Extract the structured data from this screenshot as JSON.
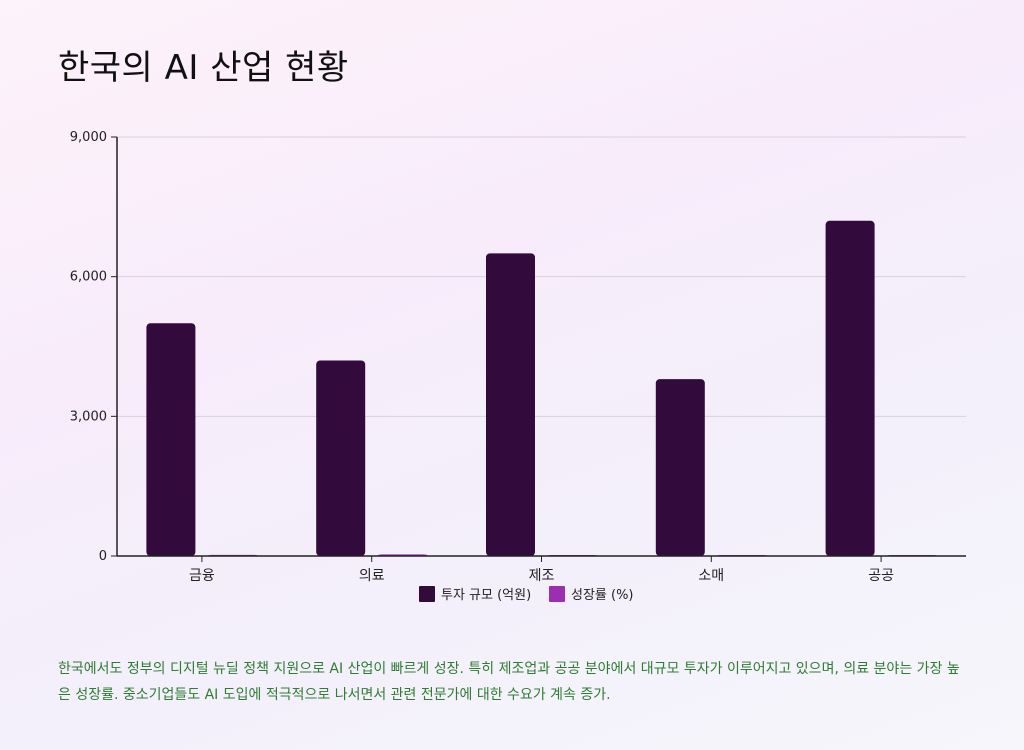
{
  "title": "한국의 AI 산업 현황",
  "caption": "한국에서도 정부의 디지털 뉴딜 정책 지원으로 AI 산업이 빠르게 성장. 특히 제조업과 공공 분야에서 대규모 투자가 이루어지고 있으며, 의료 분야는 가장 높은 성장률. 중소기업들도 AI 도입에 적극적으로 나서면서 관련 전문가에 대한 수요가 계속 증가.",
  "colors": {
    "investment": "#330a3c",
    "growth": "#9b2fb0",
    "caption": "#2e7d32",
    "grid": "#d8d0dc"
  },
  "chart_data": {
    "type": "bar",
    "title": "한국의 AI 산업 현황",
    "categories": [
      "금융",
      "의료",
      "제조",
      "소매",
      "공공"
    ],
    "series": [
      {
        "name": "투자 규모 (억원)",
        "values": [
          5000,
          4200,
          6500,
          3800,
          7200
        ]
      },
      {
        "name": "성장률 (%)",
        "values": [
          25,
          35,
          15,
          20,
          10
        ]
      }
    ],
    "yticks": [
      0,
      3000,
      6000,
      9000
    ],
    "ytick_labels": [
      "0",
      "3,000",
      "6,000",
      "9,000"
    ],
    "ylim": [
      0,
      9000
    ],
    "grid": true,
    "legend_position": "bottom"
  }
}
